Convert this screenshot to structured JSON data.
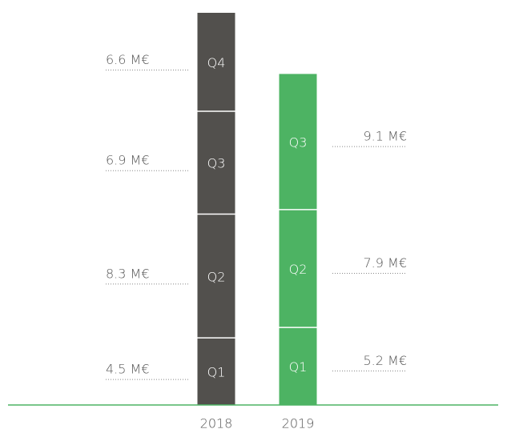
{
  "chart_data": {
    "type": "stacked_bar",
    "categories": [
      "2018",
      "2019"
    ],
    "category_colors": [
      "#52504d",
      "#4db363"
    ],
    "series": [
      {
        "name": "Q1",
        "values": [
          4.5,
          5.2
        ],
        "value_labels": [
          "4.5 M€",
          "5.2 M€"
        ]
      },
      {
        "name": "Q2",
        "values": [
          8.3,
          7.9
        ],
        "value_labels": [
          "8.3 M€",
          "7.9 M€"
        ]
      },
      {
        "name": "Q3",
        "values": [
          6.9,
          9.1
        ],
        "value_labels": [
          "6.9 M€",
          "9.1 M€"
        ]
      },
      {
        "name": "Q4",
        "values": [
          6.6,
          null
        ],
        "value_labels": [
          "6.6 M€",
          null
        ]
      }
    ],
    "baseline_color": "#4db363"
  }
}
